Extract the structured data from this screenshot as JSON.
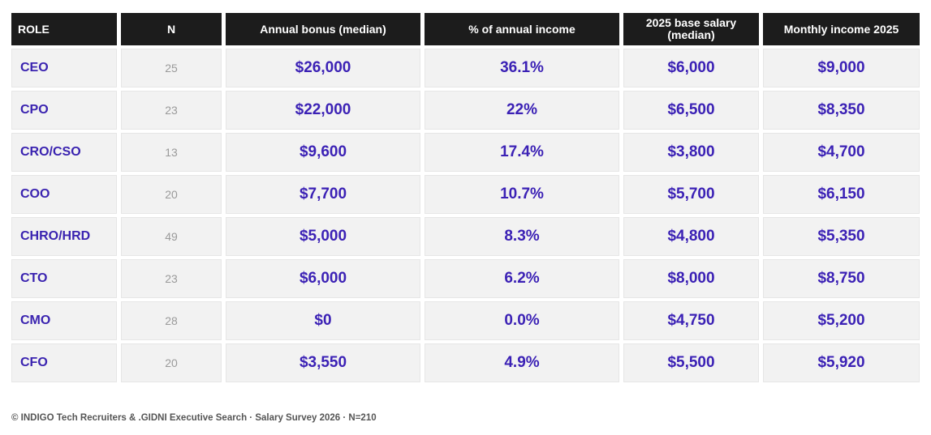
{
  "table": {
    "headers": [
      "ROLE",
      "N",
      "Annual bonus (median)",
      "% of annual income",
      "2025 base salary (median)",
      "Monthly income 2025"
    ],
    "rows": [
      {
        "role": "CEO",
        "n": "25",
        "bonus": "$26,000",
        "pct": "36.1%",
        "base": "$6,000",
        "monthly": "$9,000"
      },
      {
        "role": "CPO",
        "n": "23",
        "bonus": "$22,000",
        "pct": "22%",
        "base": "$6,500",
        "monthly": "$8,350"
      },
      {
        "role": "CRO/CSO",
        "n": "13",
        "bonus": "$9,600",
        "pct": "17.4%",
        "base": "$3,800",
        "monthly": "$4,700"
      },
      {
        "role": "COO",
        "n": "20",
        "bonus": "$7,700",
        "pct": "10.7%",
        "base": "$5,700",
        "monthly": "$6,150"
      },
      {
        "role": "CHRO/HRD",
        "n": "49",
        "bonus": "$5,000",
        "pct": "8.3%",
        "base": "$4,800",
        "monthly": "$5,350"
      },
      {
        "role": "CTO",
        "n": "23",
        "bonus": "$6,000",
        "pct": "6.2%",
        "base": "$8,000",
        "monthly": "$8,750"
      },
      {
        "role": "CMO",
        "n": "28",
        "bonus": "$0",
        "pct": "0.0%",
        "base": "$4,750",
        "monthly": "$5,200"
      },
      {
        "role": "CFO",
        "n": "20",
        "bonus": "$3,550",
        "pct": "4.9%",
        "base": "$5,500",
        "monthly": "$5,920"
      }
    ]
  },
  "footer": {
    "text": "© INDIGO Tech Recruiters & .GIDNI Executive Search · Salary Survey 2026 · N=210"
  },
  "colors": {
    "header_bg": "#1c1c1c",
    "cell_bg": "#f2f2f2",
    "accent": "#3b21b5",
    "muted": "#9a9a9a"
  }
}
